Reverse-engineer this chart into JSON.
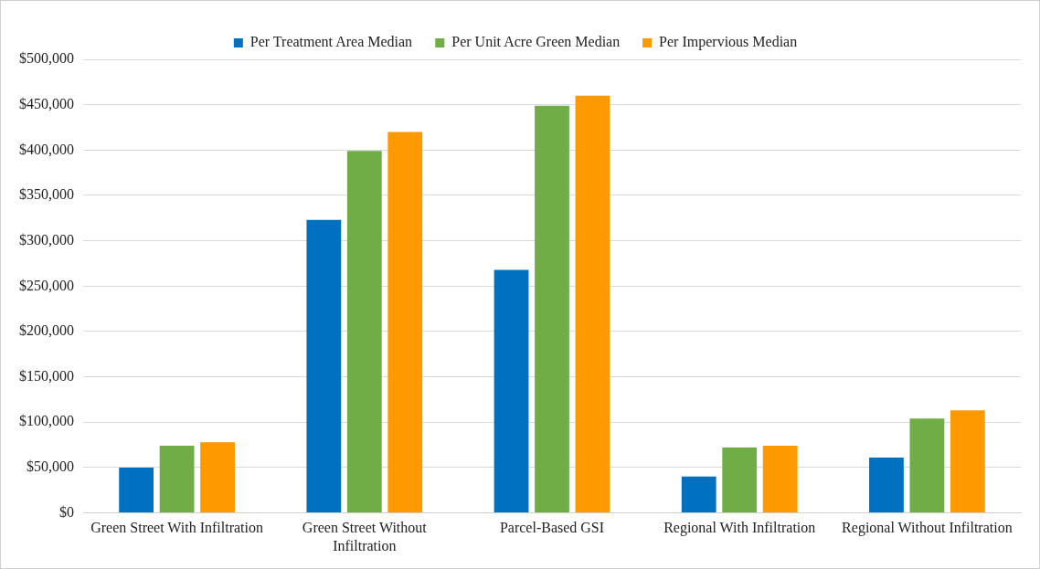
{
  "chart_data": {
    "type": "bar",
    "categories": [
      "Green Street With Infiltration",
      "Green Street Without Infiltration",
      "Parcel-Based GSI",
      "Regional With Infiltration",
      "Regional Without Infiltration"
    ],
    "series": [
      {
        "name": "Per Treatment Area Median",
        "color": "#0070c0",
        "values": [
          50000,
          323000,
          268000,
          40000,
          61000
        ]
      },
      {
        "name": "Per Unit Acre Green Median",
        "color": "#70ad47",
        "values": [
          74000,
          399000,
          449000,
          72000,
          104000
        ]
      },
      {
        "name": "Per Impervious Median",
        "color": "#ff9900",
        "values": [
          78000,
          420000,
          460000,
          74000,
          113000
        ]
      }
    ],
    "ylim": [
      0,
      500000
    ],
    "yticks": [
      {
        "value": 0,
        "label": "$0"
      },
      {
        "value": 50000,
        "label": "$50,000"
      },
      {
        "value": 100000,
        "label": "$100,000"
      },
      {
        "value": 150000,
        "label": "$150,000"
      },
      {
        "value": 200000,
        "label": "$200,000"
      },
      {
        "value": 250000,
        "label": "$250,000"
      },
      {
        "value": 300000,
        "label": "$300,000"
      },
      {
        "value": 350000,
        "label": "$350,000"
      },
      {
        "value": 400000,
        "label": "$400,000"
      },
      {
        "value": 450000,
        "label": "$450,000"
      },
      {
        "value": 500000,
        "label": "$500,000"
      }
    ],
    "grid": "y",
    "legend": "top"
  }
}
